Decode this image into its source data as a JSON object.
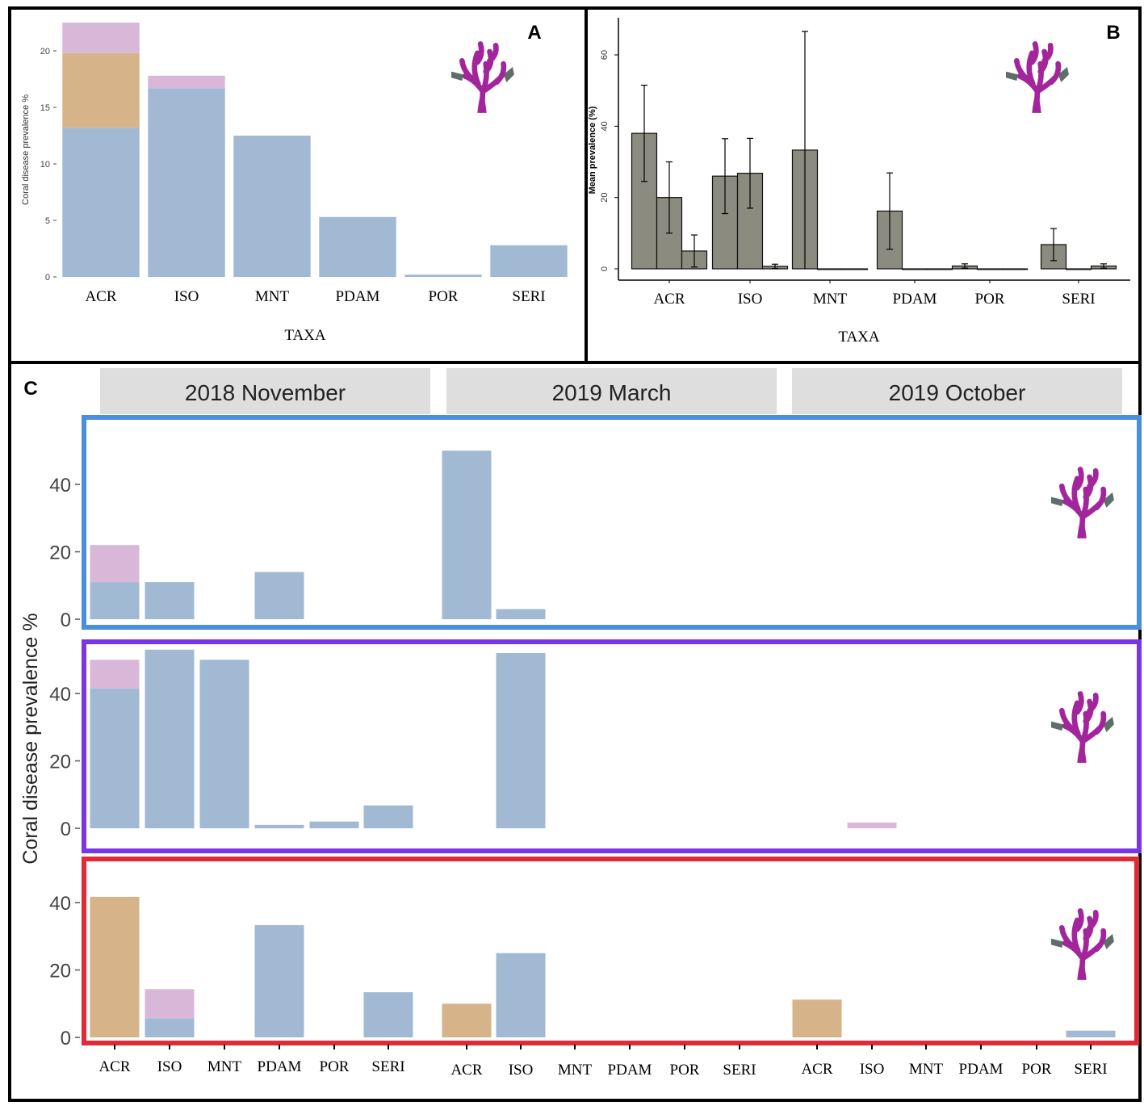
{
  "colors": {
    "blue": "#a1b9d2",
    "tan": "#d7b38a",
    "pink": "#d9b7d8",
    "gray_bar": "#8b8b80",
    "panel_blue": "#4a8ee0",
    "panel_purple": "#7a35e6",
    "panel_red": "#e02a35",
    "strip_bg": "#dedede",
    "coral": "#a3259b",
    "coral_leaf": "#5e6f68"
  },
  "icons": [
    "coral-icon"
  ],
  "chart_data": [
    {
      "id": "A",
      "panel_label": "A",
      "type": "bar",
      "stacked": true,
      "title": "",
      "xlabel": "TAXA",
      "ylabel": "Coral disease prevalence %",
      "categories": [
        "ACR",
        "ISO",
        "MNT",
        "PDAM",
        "POR",
        "SERI"
      ],
      "series": [
        {
          "name": "blue",
          "color": "#a1b9d2",
          "values": [
            13.2,
            16.7,
            12.5,
            5.3,
            0.2,
            2.8
          ]
        },
        {
          "name": "tan",
          "color": "#d7b38a",
          "values": [
            6.6,
            0,
            0,
            0,
            0,
            0
          ]
        },
        {
          "name": "pink",
          "color": "#d9b7d8",
          "values": [
            2.7,
            1.1,
            0,
            0,
            0,
            0
          ]
        }
      ],
      "ylim": [
        0,
        22.5
      ],
      "yticks": [
        0,
        5,
        10,
        15,
        20
      ]
    },
    {
      "id": "B",
      "panel_label": "B",
      "type": "bar",
      "grouped": true,
      "title": "",
      "xlabel": "TAXA",
      "ylabel": "Mean prevalence (%)",
      "categories": [
        "ACR",
        "ISO",
        "MNT",
        "PDAM",
        "POR",
        "SERI"
      ],
      "groups": [
        "2018 November",
        "2019 March",
        "2019 October"
      ],
      "values": [
        [
          38,
          20,
          5
        ],
        [
          26,
          26.8,
          0.7
        ],
        [
          33.3,
          0,
          0
        ],
        [
          16.2,
          0,
          0
        ],
        [
          0.8,
          0,
          0
        ],
        [
          6.8,
          0,
          0.8
        ]
      ],
      "errors": [
        [
          13.5,
          10,
          4.5
        ],
        [
          10.5,
          9.8,
          0.6
        ],
        [
          33.3,
          0,
          0
        ],
        [
          10.7,
          0,
          0
        ],
        [
          0.6,
          0,
          0
        ],
        [
          4.5,
          0,
          0.6
        ]
      ],
      "ylim": [
        -2,
        70
      ],
      "yticks": [
        0,
        20,
        40,
        60
      ]
    },
    {
      "id": "C",
      "panel_label": "C",
      "type": "bar",
      "stacked": true,
      "faceted": true,
      "ylabel": "Coral disease prevalence %",
      "facets": [
        "2018 November",
        "2019 March",
        "2019 October"
      ],
      "categories": [
        "ACR",
        "ISO",
        "MNT",
        "PDAM",
        "POR",
        "SERI"
      ],
      "ylim": [
        0,
        52
      ],
      "yticks": [
        0,
        20,
        40
      ],
      "rows": [
        {
          "row": "blue",
          "data": [
            {
              "blue": [
                11,
                11,
                0,
                14,
                0,
                0
              ],
              "tan": [
                0,
                0,
                0,
                0,
                0,
                0
              ],
              "pink": [
                11,
                0,
                0,
                0,
                0,
                0
              ]
            },
            {
              "blue": [
                50,
                3,
                0,
                0,
                0,
                0
              ],
              "tan": [
                0,
                0,
                0,
                0,
                0,
                0
              ],
              "pink": [
                0,
                0,
                0,
                0,
                0,
                0
              ]
            },
            {
              "blue": [
                0,
                0,
                0,
                0,
                0,
                0
              ],
              "tan": [
                0,
                0,
                0,
                0,
                0,
                0
              ],
              "pink": [
                0,
                0,
                0,
                0,
                0,
                0
              ]
            }
          ]
        },
        {
          "row": "purple",
          "data": [
            {
              "blue": [
                41.5,
                53,
                50,
                1,
                2,
                6.8
              ],
              "tan": [
                0,
                0,
                0,
                0,
                0,
                0
              ],
              "pink": [
                8.5,
                0,
                0,
                0,
                0,
                0
              ]
            },
            {
              "blue": [
                0,
                52,
                0,
                0,
                0,
                0
              ],
              "tan": [
                0,
                0,
                0,
                0,
                0,
                0
              ],
              "pink": [
                0,
                0,
                0,
                0,
                0,
                0
              ]
            },
            {
              "blue": [
                0,
                0,
                0,
                0,
                0,
                0
              ],
              "tan": [
                0,
                0,
                0,
                0,
                0,
                0
              ],
              "pink": [
                0,
                1.7,
                0,
                0,
                0,
                0
              ]
            }
          ]
        },
        {
          "row": "red",
          "data": [
            {
              "blue": [
                0,
                5.7,
                0,
                33.3,
                0,
                13.4
              ],
              "tan": [
                41.7,
                0,
                0,
                0,
                0,
                0
              ],
              "pink": [
                0,
                8.6,
                0,
                0,
                0,
                0
              ]
            },
            {
              "blue": [
                0,
                25,
                0,
                0,
                0,
                0
              ],
              "tan": [
                10,
                0,
                0,
                0,
                0,
                0
              ],
              "pink": [
                0,
                0,
                0,
                0,
                0,
                0
              ]
            },
            {
              "blue": [
                0,
                0,
                0,
                0,
                0,
                2
              ],
              "tan": [
                11.2,
                0,
                0,
                0,
                0,
                0
              ],
              "pink": [
                0,
                0,
                0,
                0,
                0,
                0
              ]
            }
          ]
        }
      ]
    }
  ]
}
